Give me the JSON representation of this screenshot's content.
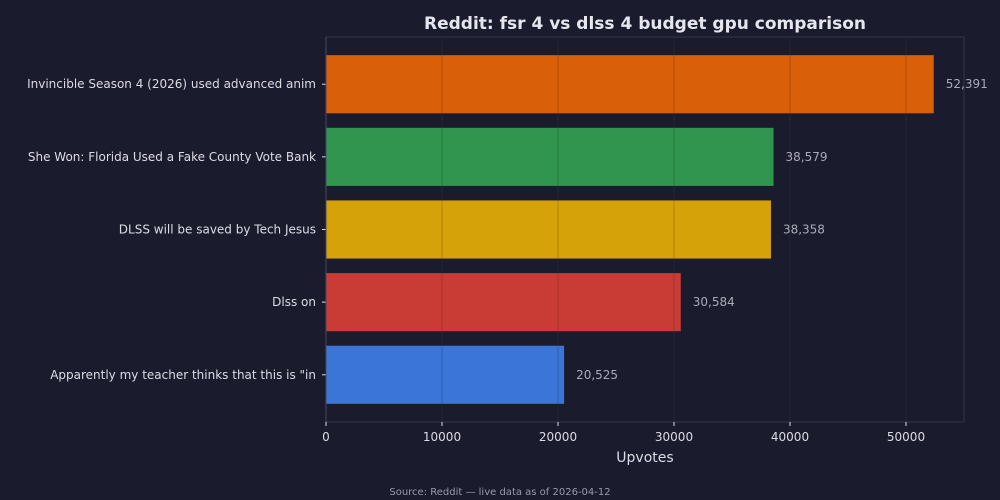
{
  "chart_data": {
    "type": "bar",
    "orientation": "horizontal",
    "title": "Reddit: fsr 4 vs dlss 4 budget gpu comparison",
    "xlabel": "Upvotes",
    "ylabel": "",
    "categories": [
      "Invincible Season 4 (2026) used advanced anim",
      "She Won: Florida Used a Fake County Vote Bank",
      "DLSS will be saved by Tech Jesus",
      "Dlss on",
      "Apparently my teacher thinks that this is \"in"
    ],
    "values": [
      52391,
      38579,
      38358,
      30584,
      20525
    ],
    "value_labels": [
      "52,391",
      "38,579",
      "38,358",
      "30,584",
      "20,525"
    ],
    "colors": [
      "#d95f08",
      "#31944f",
      "#d6a20a",
      "#c93b35",
      "#3c75d8"
    ],
    "xlim": [
      0,
      55000
    ],
    "xticks": [
      0,
      10000,
      20000,
      30000,
      40000,
      50000
    ],
    "xtick_labels": [
      "0",
      "10000",
      "20000",
      "30000",
      "40000",
      "50000"
    ],
    "grid": true
  },
  "footer": {
    "source": "Source: Reddit — live data as of 2026-04-12"
  }
}
